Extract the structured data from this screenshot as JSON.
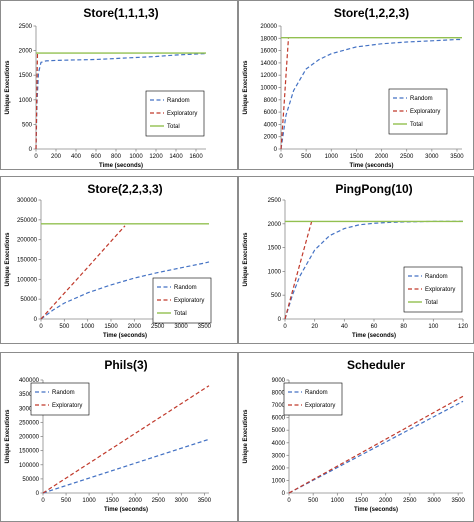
{
  "colors": {
    "random": "#4472c4",
    "exploratory": "#c0392b",
    "total": "#92c050",
    "axis": "#888888"
  },
  "chart_data": [
    {
      "type": "line",
      "title": "Store(1,1,1,3)",
      "xlabel": "Time (seconds)",
      "ylabel": "Unique Executions",
      "xlim": [
        0,
        1700
      ],
      "ylim": [
        0,
        2500
      ],
      "xticks": [
        "0",
        "200",
        "400",
        "600",
        "800",
        "1000",
        "1200",
        "1400",
        "1600"
      ],
      "yticks": [
        "0",
        "500",
        "1000",
        "1500",
        "2000",
        "2500"
      ],
      "legend": "center-right",
      "series": [
        {
          "name": "Random",
          "style": "dashed",
          "color": "#4472c4",
          "x": [
            0,
            10,
            25,
            50,
            100,
            200,
            400,
            600,
            800,
            1000,
            1200,
            1400,
            1600,
            1700
          ],
          "y": [
            0,
            950,
            1550,
            1760,
            1790,
            1800,
            1810,
            1820,
            1840,
            1860,
            1880,
            1910,
            1930,
            1940
          ]
        },
        {
          "name": "Exploratory",
          "style": "dashed",
          "color": "#c0392b",
          "x": [
            0,
            5,
            10,
            15
          ],
          "y": [
            0,
            700,
            1400,
            1950
          ]
        },
        {
          "name": "Total",
          "style": "solid",
          "color": "#92c050",
          "x": [
            0,
            1700
          ],
          "y": [
            1950,
            1950
          ]
        }
      ]
    },
    {
      "type": "line",
      "title": "Store(1,2,2,3)",
      "xlabel": "Time (seconds)",
      "ylabel": "Unique Executions",
      "xlim": [
        0,
        3600
      ],
      "ylim": [
        0,
        20000
      ],
      "xticks": [
        "0",
        "500",
        "1000",
        "1500",
        "2000",
        "2500",
        "3000",
        "3500"
      ],
      "yticks": [
        "0",
        "2000",
        "4000",
        "6000",
        "8000",
        "10000",
        "12000",
        "14000",
        "16000",
        "18000",
        "20000"
      ],
      "legend": "center-right",
      "series": [
        {
          "name": "Random",
          "style": "dashed",
          "color": "#4472c4",
          "x": [
            0,
            100,
            250,
            500,
            750,
            1000,
            1500,
            2000,
            2500,
            3000,
            3500,
            3600
          ],
          "y": [
            0,
            5500,
            9500,
            13000,
            14500,
            15500,
            16600,
            17100,
            17400,
            17600,
            17800,
            17800
          ]
        },
        {
          "name": "Exploratory",
          "style": "dashed",
          "color": "#c0392b",
          "x": [
            0,
            60,
            120,
            150
          ],
          "y": [
            0,
            7000,
            14500,
            18100
          ]
        },
        {
          "name": "Total",
          "style": "solid",
          "color": "#92c050",
          "x": [
            0,
            3600
          ],
          "y": [
            18100,
            18100
          ]
        }
      ]
    },
    {
      "type": "line",
      "title": "Store(2,2,3,3)",
      "xlabel": "Time (seconds)",
      "ylabel": "Unique Executions",
      "xlim": [
        0,
        3600
      ],
      "ylim": [
        0,
        300000
      ],
      "xticks": [
        "0",
        "500",
        "1000",
        "1500",
        "2000",
        "2500",
        "3000",
        "3500"
      ],
      "yticks": [
        "0",
        "50000",
        "100000",
        "150000",
        "200000",
        "250000",
        "300000"
      ],
      "legend": "bottom-right",
      "series": [
        {
          "name": "Random",
          "style": "dashed",
          "color": "#4472c4",
          "x": [
            0,
            250,
            500,
            1000,
            1500,
            2000,
            2500,
            3000,
            3500,
            3600
          ],
          "y": [
            0,
            22000,
            40000,
            66000,
            86000,
            103000,
            117000,
            129000,
            141000,
            144000
          ]
        },
        {
          "name": "Exploratory",
          "style": "dashed",
          "color": "#c0392b",
          "x": [
            0,
            500,
            1000,
            1500,
            1800
          ],
          "y": [
            0,
            65000,
            130000,
            196000,
            235000
          ]
        },
        {
          "name": "Total",
          "style": "solid",
          "color": "#92c050",
          "x": [
            0,
            3600
          ],
          "y": [
            240000,
            240000
          ]
        }
      ]
    },
    {
      "type": "line",
      "title": "PingPong(10)",
      "xlabel": "Time (seconds)",
      "ylabel": "Unique Executions",
      "xlim": [
        0,
        120
      ],
      "ylim": [
        0,
        2500
      ],
      "xticks": [
        "0",
        "20",
        "40",
        "60",
        "80",
        "100",
        "120"
      ],
      "yticks": [
        "0",
        "500",
        "1000",
        "1500",
        "2000",
        "2500"
      ],
      "legend": "bottom-right",
      "series": [
        {
          "name": "Random",
          "style": "dashed",
          "color": "#4472c4",
          "x": [
            0,
            5,
            10,
            20,
            30,
            40,
            50,
            60,
            70,
            80,
            100,
            120
          ],
          "y": [
            0,
            500,
            900,
            1450,
            1750,
            1900,
            1980,
            2010,
            2030,
            2040,
            2050,
            2050
          ]
        },
        {
          "name": "Exploratory",
          "style": "dashed",
          "color": "#c0392b",
          "x": [
            0,
            5,
            10,
            15,
            18
          ],
          "y": [
            0,
            580,
            1150,
            1720,
            2050
          ]
        },
        {
          "name": "Total",
          "style": "solid",
          "color": "#92c050",
          "x": [
            0,
            120
          ],
          "y": [
            2050,
            2050
          ]
        }
      ]
    },
    {
      "type": "line",
      "title": "Phils(3)",
      "xlabel": "Time (seconds)",
      "ylabel": "Unique Executions",
      "xlim": [
        0,
        3600
      ],
      "ylim": [
        0,
        400000
      ],
      "xticks": [
        "0",
        "500",
        "1000",
        "1500",
        "2000",
        "2500",
        "3000",
        "3500"
      ],
      "yticks": [
        "0",
        "50000",
        "100000",
        "150000",
        "200000",
        "250000",
        "300000",
        "350000",
        "400000"
      ],
      "legend": "top-left",
      "series": [
        {
          "name": "Random",
          "style": "dashed",
          "color": "#4472c4",
          "x": [
            0,
            3600
          ],
          "y": [
            0,
            190000
          ]
        },
        {
          "name": "Exploratory",
          "style": "dashed",
          "color": "#c0392b",
          "x": [
            0,
            3600
          ],
          "y": [
            0,
            380000
          ]
        }
      ]
    },
    {
      "type": "line",
      "title": "Scheduler",
      "xlabel": "Time (seconds)",
      "ylabel": "Unique Executions",
      "xlim": [
        0,
        3600
      ],
      "ylim": [
        0,
        9000
      ],
      "xticks": [
        "0",
        "500",
        "1000",
        "1500",
        "2000",
        "2500",
        "3000",
        "3500"
      ],
      "yticks": [
        "0",
        "1000",
        "2000",
        "3000",
        "4000",
        "5000",
        "6000",
        "7000",
        "8000",
        "9000"
      ],
      "legend": "top-left",
      "series": [
        {
          "name": "Random",
          "style": "dashed",
          "color": "#4472c4",
          "x": [
            0,
            3600
          ],
          "y": [
            0,
            7300
          ]
        },
        {
          "name": "Exploratory",
          "style": "dashed",
          "color": "#c0392b",
          "x": [
            0,
            3600
          ],
          "y": [
            0,
            7700
          ]
        }
      ]
    }
  ]
}
